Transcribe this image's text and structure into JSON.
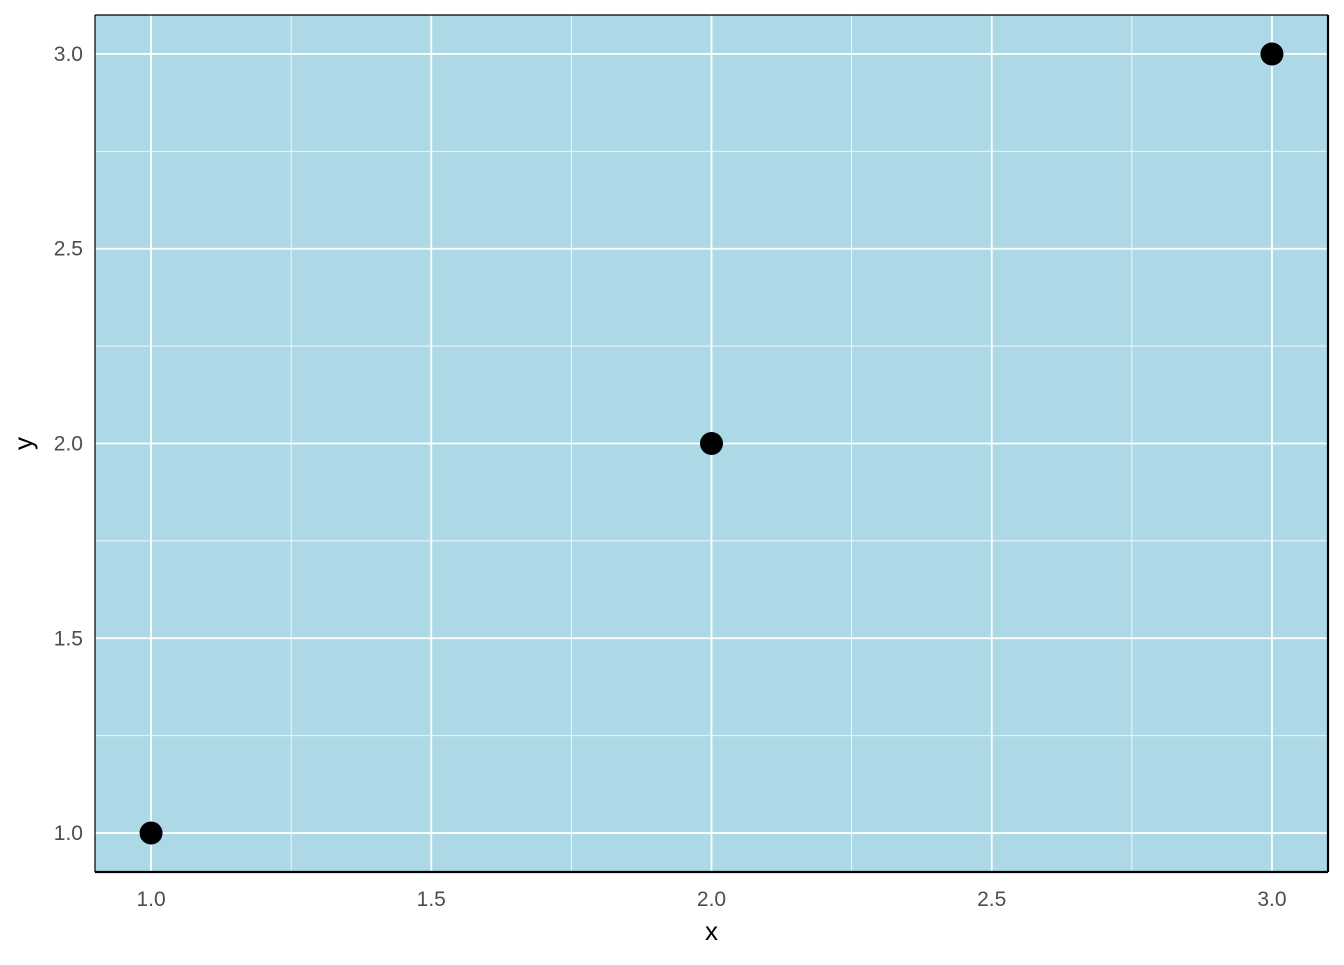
{
  "chart_data": {
    "type": "scatter",
    "title": "",
    "xlabel": "x",
    "ylabel": "y",
    "xlim": [
      0.9,
      3.1
    ],
    "ylim": [
      0.9,
      3.1
    ],
    "x_ticks": [
      1.0,
      1.5,
      2.0,
      2.5,
      3.0
    ],
    "y_ticks": [
      1.0,
      1.5,
      2.0,
      2.5,
      3.0
    ],
    "x_tick_labels": [
      "1.0",
      "1.5",
      "2.0",
      "2.5",
      "3.0"
    ],
    "y_tick_labels": [
      "1.0",
      "1.5",
      "2.0",
      "2.5",
      "3.0"
    ],
    "x_minor_ticks": [
      1.25,
      1.75,
      2.25,
      2.75
    ],
    "y_minor_ticks": [
      1.25,
      1.75,
      2.25,
      2.75
    ],
    "grid": true,
    "legend": "none",
    "series": [
      {
        "points": [
          {
            "x": 1,
            "y": 1
          },
          {
            "x": 2,
            "y": 2
          },
          {
            "x": 3,
            "y": 3
          }
        ]
      }
    ],
    "colors": {
      "panel_background": "#add8e6",
      "grid": "#ffffff",
      "points": "#000000",
      "axis_line": "#000000"
    }
  }
}
